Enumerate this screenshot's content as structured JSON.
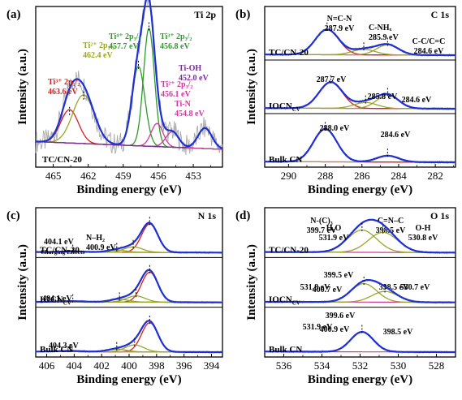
{
  "figure": {
    "panels": [
      {
        "id": "a",
        "letter": "(a)",
        "element": "Ti 2p",
        "xlabel": "Binding energy (eV)",
        "ylabel": "Intensity (a.u.)",
        "xticks": [
          "465",
          "462",
          "459",
          "456",
          "453"
        ],
        "samples": [
          "TC/CN-20"
        ],
        "annotations": [
          {
            "lines": [
              "Ti³⁺ 2p₁/₂",
              "463.6 eV"
            ],
            "color": "#d42020"
          },
          {
            "lines": [
              "Ti²⁺ 2p₁/₂",
              "462.4 eV"
            ],
            "color": "#9aa626"
          },
          {
            "lines": [
              "Ti⁴⁺ 2p₃/₂",
              "457.7 eV"
            ],
            "color": "#2e9a2a"
          },
          {
            "lines": [
              "Ti³⁺ 2p₃/₂",
              "456.8 eV"
            ],
            "color": "#2e9a2a"
          },
          {
            "lines": [
              "Ti²⁺ 2p₃/₂",
              "456.1 eV"
            ],
            "color": "#cc3a9b"
          },
          {
            "lines": [
              "Ti-N",
              "454.8 eV"
            ],
            "color": "#cc3a9b"
          },
          {
            "lines": [
              "Ti-OH",
              "452.0 eV"
            ],
            "color": "#7a2a9a"
          }
        ]
      },
      {
        "id": "b",
        "letter": "(b)",
        "element": "C 1s",
        "xlabel": "Binding energy (eV)",
        "ylabel": "Intensity (a.u.)",
        "xticks": [
          "290",
          "288",
          "286",
          "284",
          "282"
        ],
        "samples": [
          "TC/CN-20",
          "IOCN",
          "Bulk CN"
        ],
        "sample_subscript": {
          "IOCN": "CV"
        },
        "annotations": [
          {
            "lines": [
              "N=C-N",
              "287.9 eV"
            ]
          },
          {
            "lines": [
              "C-NHₓ",
              "285.9 eV"
            ]
          },
          {
            "lines": [
              "C-C/C=C",
              "284.6 eV"
            ]
          },
          {
            "lines": [
              "287.7 eV"
            ]
          },
          {
            "lines": [
              "285.8 eV"
            ]
          },
          {
            "lines": [
              "284.6 eV"
            ]
          },
          {
            "lines": [
              "288.0 eV"
            ]
          },
          {
            "lines": [
              "284.6 eV"
            ]
          }
        ]
      },
      {
        "id": "c",
        "letter": "(c)",
        "element": "N 1s",
        "xlabel": "Binding energy (eV)",
        "ylabel": "Intensity (a.u.)",
        "xticks": [
          "406",
          "404",
          "402",
          "400",
          "398",
          "396",
          "394"
        ],
        "samples": [
          "TC/CN-20",
          "IOCN",
          "Bulk CN"
        ],
        "sample_subscript": {
          "IOCN": "CV"
        },
        "annotations": [
          {
            "lines": [
              "N-(C)₃",
              "399.7 eV"
            ]
          },
          {
            "lines": [
              "C=N–C",
              "398.5 eV"
            ]
          },
          {
            "lines": [
              "N–H₂",
              "400.9 eV"
            ]
          },
          {
            "lines": [
              "404.1 eV"
            ]
          },
          {
            "lines": [
              "Charging Effects"
            ]
          },
          {
            "lines": [
              "399.5 eV"
            ]
          },
          {
            "lines": [
              "400.7 eV"
            ]
          },
          {
            "lines": [
              "398.5 eV"
            ]
          },
          {
            "lines": [
              "404.1 eV"
            ]
          },
          {
            "lines": [
              "399.6 eV"
            ]
          },
          {
            "lines": [
              "400.9 eV"
            ]
          },
          {
            "lines": [
              "398.5 eV"
            ]
          },
          {
            "lines": [
              "404.3 eV"
            ]
          }
        ]
      },
      {
        "id": "d",
        "letter": "(d)",
        "element": "O 1s",
        "xlabel": "Binding energy (eV)",
        "ylabel": "Intensity (a.u.)",
        "xticks": [
          "536",
          "534",
          "532",
          "530",
          "528"
        ],
        "samples": [
          "TC/CN-20",
          "IOCN",
          "Bulk CN"
        ],
        "sample_subscript": {
          "IOCN": "CV"
        },
        "annotations": [
          {
            "lines": [
              "H₂O",
              "531.9 eV"
            ]
          },
          {
            "lines": [
              "O-H",
              "530.8 eV"
            ]
          },
          {
            "lines": [
              "531.8 eV"
            ]
          },
          {
            "lines": [
              "530.7 eV"
            ]
          },
          {
            "lines": [
              "531.9 eV"
            ]
          }
        ]
      }
    ],
    "colors": {
      "fit_envelope": "#1f2fd6",
      "raw_data": "#a8a8a8",
      "background": "#cc3a9b",
      "component_red": "#d42020",
      "component_olive": "#9aa626",
      "component_green": "#2e9a2a",
      "component_purple": "#7a2a9a"
    }
  },
  "chart_data": [
    {
      "type": "line",
      "panel": "(a)",
      "title": "Ti 2p",
      "xlabel": "Binding energy (eV)",
      "ylabel": "Intensity (a.u.)",
      "xlim": [
        466.5,
        450.5
      ],
      "xticks": [
        465,
        462,
        459,
        456,
        453
      ],
      "series": [
        {
          "name": "TC/CN-20",
          "peaks": [
            {
              "label": "Ti³⁺ 2p₁/₂",
              "center": 463.6,
              "height": 0.26,
              "fwhm": 1.8
            },
            {
              "label": "Ti²⁺ 2p₁/₂",
              "center": 462.4,
              "height": 0.38,
              "fwhm": 2.2
            },
            {
              "label": "Ti⁴⁺ 2p₃/₂",
              "center": 457.7,
              "height": 0.62,
              "fwhm": 1.3
            },
            {
              "label": "Ti³⁺ 2p₃/₂",
              "center": 456.8,
              "height": 0.92,
              "fwhm": 1.1
            },
            {
              "label": "Ti²⁺ 2p₃/₂",
              "center": 456.1,
              "height": 0.18,
              "fwhm": 1.2
            },
            {
              "label": "Ti-N",
              "center": 454.8,
              "height": 0.12,
              "fwhm": 1.3
            },
            {
              "label": "Ti-OH",
              "center": 452.0,
              "height": 0.16,
              "fwhm": 1.4
            }
          ]
        }
      ]
    },
    {
      "type": "line",
      "panel": "(b)",
      "title": "C 1s",
      "xlabel": "Binding energy (eV)",
      "ylabel": "Intensity (a.u.)",
      "xlim": [
        291.3,
        280.9
      ],
      "xticks": [
        290,
        288,
        286,
        284,
        282
      ],
      "series": [
        {
          "name": "TC/CN-20",
          "peaks": [
            {
              "label": "N=C-N",
              "center": 287.9,
              "height": 0.6,
              "fwhm": 1.5
            },
            {
              "label": "C-NHₓ",
              "center": 285.9,
              "height": 0.13,
              "fwhm": 1.5
            },
            {
              "label": "C-C/C=C",
              "center": 284.6,
              "height": 0.24,
              "fwhm": 1.4
            }
          ]
        },
        {
          "name": "IOCN",
          "peaks": [
            {
              "label": "",
              "center": 287.7,
              "height": 0.62,
              "fwhm": 1.5
            },
            {
              "label": "",
              "center": 285.8,
              "height": 0.14,
              "fwhm": 1.5
            },
            {
              "label": "",
              "center": 284.6,
              "height": 0.32,
              "fwhm": 1.4
            }
          ]
        },
        {
          "name": "Bulk CN",
          "peaks": [
            {
              "label": "",
              "center": 288.0,
              "height": 0.78,
              "fwhm": 1.5
            },
            {
              "label": "",
              "center": 284.6,
              "height": 0.15,
              "fwhm": 1.4
            }
          ]
        }
      ]
    },
    {
      "type": "line",
      "panel": "(c)",
      "title": "N 1s",
      "xlabel": "Binding energy (eV)",
      "ylabel": "Intensity (a.u.)",
      "xlim": [
        406.8,
        393.2
      ],
      "xticks": [
        406,
        404,
        402,
        400,
        398,
        396,
        394
      ],
      "series": [
        {
          "name": "TC/CN-20",
          "peaks": [
            {
              "label": "C=N–C",
              "center": 398.5,
              "height": 0.74,
              "fwhm": 1.4
            },
            {
              "label": "N-(C)₃",
              "center": 399.7,
              "height": 0.14,
              "fwhm": 1.6
            },
            {
              "label": "N–H₂",
              "center": 400.9,
              "height": 0.06,
              "fwhm": 1.6
            },
            {
              "label": "Charging Effects",
              "center": 404.1,
              "height": 0.02,
              "fwhm": 2.0
            }
          ]
        },
        {
          "name": "IOCN",
          "peaks": [
            {
              "label": "",
              "center": 398.5,
              "height": 0.78,
              "fwhm": 1.4
            },
            {
              "label": "",
              "center": 399.5,
              "height": 0.16,
              "fwhm": 1.6
            },
            {
              "label": "",
              "center": 400.7,
              "height": 0.07,
              "fwhm": 1.6
            },
            {
              "label": "",
              "center": 404.1,
              "height": 0.02,
              "fwhm": 2.0
            }
          ]
        },
        {
          "name": "Bulk CN",
          "peaks": [
            {
              "label": "",
              "center": 398.5,
              "height": 0.76,
              "fwhm": 1.4
            },
            {
              "label": "",
              "center": 399.6,
              "height": 0.18,
              "fwhm": 1.6
            },
            {
              "label": "",
              "center": 400.9,
              "height": 0.07,
              "fwhm": 1.6
            },
            {
              "label": "",
              "center": 404.3,
              "height": 0.02,
              "fwhm": 2.0
            }
          ]
        }
      ]
    },
    {
      "type": "line",
      "panel": "(d)",
      "title": "O 1s",
      "xlabel": "Binding energy (eV)",
      "ylabel": "Intensity (a.u.)",
      "xlim": [
        537.0,
        527.0
      ],
      "xticks": [
        536,
        534,
        532,
        530,
        528
      ],
      "series": [
        {
          "name": "TC/CN-20",
          "peaks": [
            {
              "label": "H₂O",
              "center": 531.9,
              "height": 0.58,
              "fwhm": 1.8
            },
            {
              "label": "O-H",
              "center": 530.8,
              "height": 0.52,
              "fwhm": 1.8
            }
          ]
        },
        {
          "name": "IOCN",
          "peaks": [
            {
              "label": "",
              "center": 531.8,
              "height": 0.48,
              "fwhm": 1.6
            },
            {
              "label": "",
              "center": 530.7,
              "height": 0.28,
              "fwhm": 1.6
            }
          ]
        },
        {
          "name": "Bulk CN",
          "peaks": [
            {
              "label": "",
              "center": 531.9,
              "height": 0.52,
              "fwhm": 1.4
            }
          ]
        }
      ]
    }
  ]
}
